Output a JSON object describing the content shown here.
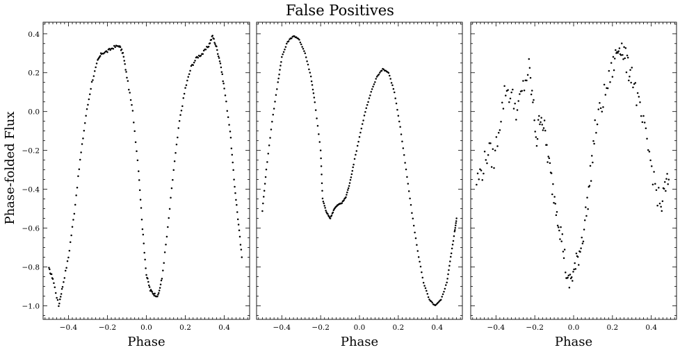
{
  "figure": {
    "title": "False Positives",
    "ylabel": "Phase-folded Flux",
    "xlabel": "Phase"
  },
  "chart_data": [
    {
      "type": "scatter",
      "xlabel": "Phase",
      "ylabel": "Phase-folded Flux",
      "xlim": [
        -0.53,
        0.53
      ],
      "ylim": [
        -1.07,
        0.46
      ],
      "xticks": [
        -0.4,
        -0.2,
        0.0,
        0.2,
        0.4
      ],
      "yticks": [
        -1.0,
        -0.8,
        -0.6,
        -0.4,
        -0.2,
        0.0,
        0.2,
        0.4
      ],
      "xtick_labels": [
        "−0.4",
        "−0.2",
        "0.0",
        "0.2",
        "0.4"
      ],
      "ytick_labels": [
        "−1.0",
        "−0.8",
        "−0.6",
        "−0.4",
        "−0.2",
        "0.0",
        "0.2",
        "0.4"
      ],
      "marker_color": "#000000",
      "keypoints": [
        [
          -0.5,
          -0.81
        ],
        [
          -0.48,
          -0.86
        ],
        [
          -0.45,
          -1.0
        ],
        [
          -0.43,
          -0.9
        ],
        [
          -0.4,
          -0.75
        ],
        [
          -0.37,
          -0.52
        ],
        [
          -0.34,
          -0.25
        ],
        [
          -0.31,
          -0.02
        ],
        [
          -0.28,
          0.15
        ],
        [
          -0.25,
          0.26
        ],
        [
          -0.23,
          0.3
        ],
        [
          -0.2,
          0.31
        ],
        [
          -0.17,
          0.33
        ],
        [
          -0.14,
          0.34
        ],
        [
          -0.12,
          0.3
        ],
        [
          -0.1,
          0.18
        ],
        [
          -0.07,
          0.0
        ],
        [
          -0.04,
          -0.3
        ],
        [
          -0.02,
          -0.6
        ],
        [
          0.0,
          -0.84
        ],
        [
          0.02,
          -0.92
        ],
        [
          0.04,
          -0.94
        ],
        [
          0.06,
          -0.95
        ],
        [
          0.08,
          -0.86
        ],
        [
          0.11,
          -0.6
        ],
        [
          0.14,
          -0.3
        ],
        [
          0.17,
          -0.05
        ],
        [
          0.2,
          0.12
        ],
        [
          0.23,
          0.23
        ],
        [
          0.26,
          0.28
        ],
        [
          0.29,
          0.3
        ],
        [
          0.32,
          0.34
        ],
        [
          0.34,
          0.39
        ],
        [
          0.36,
          0.33
        ],
        [
          0.38,
          0.25
        ],
        [
          0.4,
          0.12
        ],
        [
          0.43,
          -0.1
        ],
        [
          0.45,
          -0.35
        ],
        [
          0.47,
          -0.55
        ],
        [
          0.49,
          -0.75
        ]
      ]
    },
    {
      "type": "scatter",
      "xlabel": "Phase",
      "xlim": [
        -0.53,
        0.53
      ],
      "ylim": [
        -1.07,
        0.46
      ],
      "xticks": [
        -0.4,
        -0.2,
        0.0,
        0.2,
        0.4
      ],
      "xtick_labels": [
        "−0.4",
        "−0.2",
        "0.0",
        "0.2",
        "0.4"
      ],
      "marker_color": "#000000",
      "keypoints": [
        [
          -0.5,
          -0.51
        ],
        [
          -0.48,
          -0.3
        ],
        [
          -0.45,
          -0.05
        ],
        [
          -0.42,
          0.15
        ],
        [
          -0.4,
          0.28
        ],
        [
          -0.37,
          0.36
        ],
        [
          -0.34,
          0.39
        ],
        [
          -0.31,
          0.37
        ],
        [
          -0.28,
          0.3
        ],
        [
          -0.25,
          0.18
        ],
        [
          -0.23,
          0.05
        ],
        [
          -0.2,
          -0.2
        ],
        [
          -0.19,
          -0.45
        ],
        [
          -0.17,
          -0.52
        ],
        [
          -0.15,
          -0.55
        ],
        [
          -0.13,
          -0.5
        ],
        [
          -0.11,
          -0.48
        ],
        [
          -0.09,
          -0.47
        ],
        [
          -0.07,
          -0.44
        ],
        [
          -0.05,
          -0.37
        ],
        [
          -0.03,
          -0.27
        ],
        [
          0.0,
          -0.13
        ],
        [
          0.03,
          0.0
        ],
        [
          0.06,
          0.1
        ],
        [
          0.09,
          0.18
        ],
        [
          0.12,
          0.22
        ],
        [
          0.15,
          0.2
        ],
        [
          0.18,
          0.1
        ],
        [
          0.21,
          -0.08
        ],
        [
          0.24,
          -0.3
        ],
        [
          0.27,
          -0.52
        ],
        [
          0.3,
          -0.72
        ],
        [
          0.33,
          -0.88
        ],
        [
          0.36,
          -0.97
        ],
        [
          0.39,
          -1.0
        ],
        [
          0.42,
          -0.97
        ],
        [
          0.45,
          -0.88
        ],
        [
          0.47,
          -0.75
        ],
        [
          0.49,
          -0.62
        ],
        [
          0.5,
          -0.55
        ]
      ]
    },
    {
      "type": "scatter",
      "xlabel": "Phase",
      "xlim": [
        -0.53,
        0.53
      ],
      "ylim": [
        -1.07,
        0.46
      ],
      "xticks": [
        -0.4,
        -0.2,
        0.0,
        0.2,
        0.4
      ],
      "xtick_labels": [
        "−0.4",
        "−0.2",
        "0.0",
        "0.2",
        "0.4"
      ],
      "marker_color": "#000000",
      "keypoints": [
        [
          -0.5,
          -0.36
        ],
        [
          -0.47,
          -0.3
        ],
        [
          -0.44,
          -0.2
        ],
        [
          -0.41,
          -0.25
        ],
        [
          -0.38,
          -0.05
        ],
        [
          -0.35,
          0.12
        ],
        [
          -0.32,
          0.08
        ],
        [
          -0.29,
          0.0
        ],
        [
          -0.26,
          0.12
        ],
        [
          -0.23,
          0.22
        ],
        [
          -0.21,
          0.05
        ],
        [
          -0.19,
          -0.15
        ],
        [
          -0.17,
          0.0
        ],
        [
          -0.15,
          -0.1
        ],
        [
          -0.13,
          -0.25
        ],
        [
          -0.11,
          -0.38
        ],
        [
          -0.09,
          -0.48
        ],
        [
          -0.07,
          -0.6
        ],
        [
          -0.05,
          -0.72
        ],
        [
          -0.03,
          -0.9
        ],
        [
          -0.01,
          -0.85
        ],
        [
          0.01,
          -0.8
        ],
        [
          0.03,
          -0.72
        ],
        [
          0.05,
          -0.62
        ],
        [
          0.07,
          -0.48
        ],
        [
          0.09,
          -0.3
        ],
        [
          0.11,
          -0.1
        ],
        [
          0.14,
          0.02
        ],
        [
          0.17,
          0.12
        ],
        [
          0.2,
          0.22
        ],
        [
          0.22,
          0.3
        ],
        [
          0.24,
          0.35
        ],
        [
          0.26,
          0.3
        ],
        [
          0.28,
          0.22
        ],
        [
          0.3,
          0.2
        ],
        [
          0.33,
          0.05
        ],
        [
          0.36,
          -0.08
        ],
        [
          0.39,
          -0.22
        ],
        [
          0.42,
          -0.38
        ],
        [
          0.45,
          -0.5
        ],
        [
          0.47,
          -0.4
        ],
        [
          0.49,
          -0.35
        ]
      ]
    }
  ]
}
